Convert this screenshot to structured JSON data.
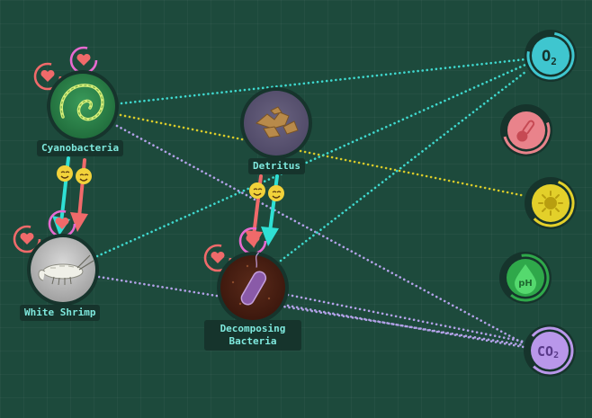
{
  "organisms": {
    "cyanobacteria": {
      "label": "Cyanobacteria"
    },
    "detritus": {
      "label": "Detritus"
    },
    "white_shrimp": {
      "label": "White Shrimp"
    },
    "decomposing_bacteria": {
      "label": "Decomposing Bacteria"
    }
  },
  "resources": {
    "o2": {
      "label": "O",
      "sub": "2"
    },
    "temperature": {
      "icon": "thermometer-icon"
    },
    "light": {
      "icon": "sun-icon"
    },
    "ph": {
      "label": "pH"
    },
    "co2": {
      "label": "CO",
      "sub": "2"
    }
  },
  "colors": {
    "background": "#1d4a3c",
    "label_text": "#7fe9de",
    "label_bg": "#16342c",
    "o2": "#3fc6cf",
    "temperature": "#e9838b",
    "light": "#e3d02a",
    "ph": "#2fa84a",
    "co2": "#b997ea",
    "heart": "#f06a6a",
    "heart_pink": "#e86ad0",
    "link_cyan": "#3fd9cf",
    "link_yellow": "#d6c92a",
    "link_lavender": "#b3a2e8",
    "arrow_cyan": "#2fe0d4",
    "arrow_red": "#f06a6a",
    "smiley": "#f2d23a"
  }
}
